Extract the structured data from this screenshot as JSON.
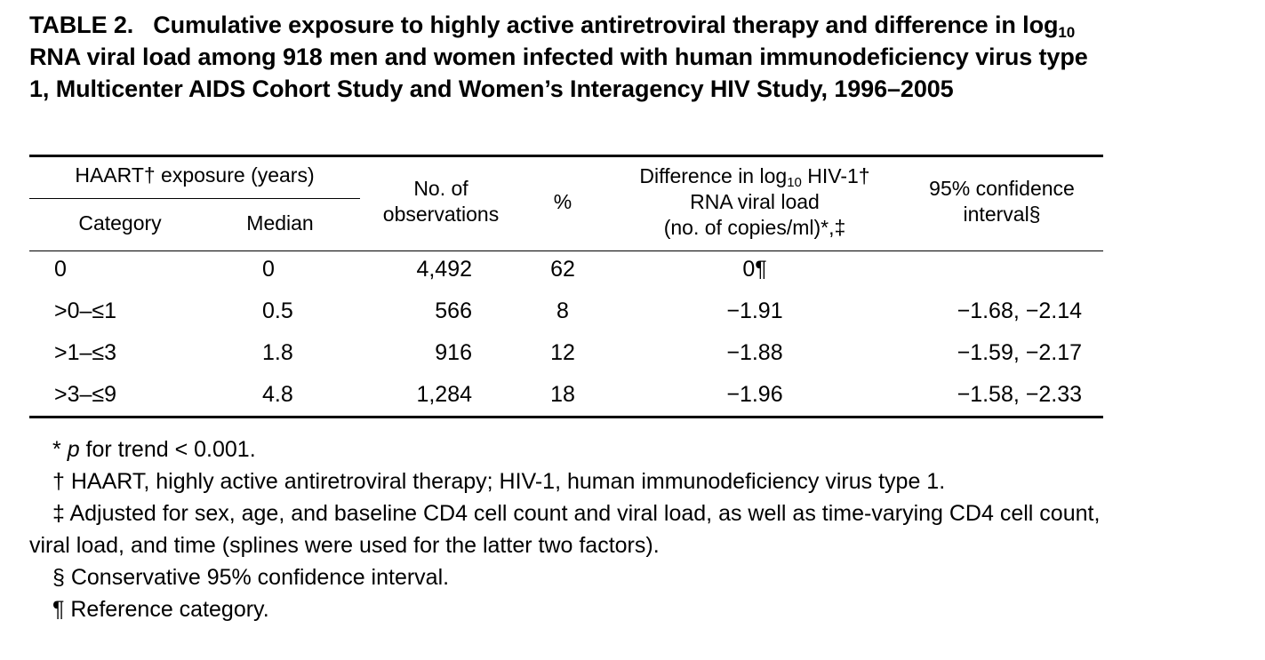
{
  "table": {
    "label": "TABLE 2.",
    "title_part1": "Cumulative exposure to highly active antiretroviral therapy and difference in log",
    "title_sub": "10",
    "title_part2": " RNA viral load among 918 men and women infected with human immunodeficiency virus type 1, Multicenter AIDS Cohort Study and Women’s Interagency HIV Study, 1996–2005",
    "headers": {
      "group": "HAART† exposure (years)",
      "category": "Category",
      "median": "Median",
      "obs_line1": "No. of",
      "obs_line2": "observations",
      "pct": "%",
      "diff_line1_a": "Difference in log",
      "diff_line1_sub": "10",
      "diff_line1_b": " HIV-1†",
      "diff_line2": "RNA viral load",
      "diff_line3": "(no. of copies/ml)*,‡",
      "ci_line1": "95% confidence",
      "ci_line2": "interval§"
    },
    "rows": [
      {
        "category": "0",
        "median": "0",
        "observations": "4,492",
        "percent": "62",
        "difference": "0¶",
        "ci": ""
      },
      {
        "category": ">0–≤1",
        "median": "0.5",
        "observations": "566",
        "percent": "8",
        "difference": "−1.91",
        "ci": "−1.68, −2.14"
      },
      {
        "category": ">1–≤3",
        "median": "1.8",
        "observations": "916",
        "percent": "12",
        "difference": "−1.88",
        "ci": "−1.59, −2.17"
      },
      {
        "category": ">3–≤9",
        "median": "4.8",
        "observations": "1,284",
        "percent": "18",
        "difference": "−1.96",
        "ci": "−1.58, −2.33"
      }
    ],
    "footnotes": {
      "fn1_mark": "* ",
      "fn1_italic": "p",
      "fn1_rest": " for trend < 0.001.",
      "fn2": "† HAART, highly active antiretroviral therapy; HIV-1, human immunodeficiency virus type 1.",
      "fn3": "‡ Adjusted for sex, age, and baseline CD4 cell count and viral load, as well as time-varying CD4 cell count, viral load, and time (splines were used for the latter two factors).",
      "fn4": "§ Conservative 95% confidence interval.",
      "fn5": "¶ Reference category."
    }
  }
}
